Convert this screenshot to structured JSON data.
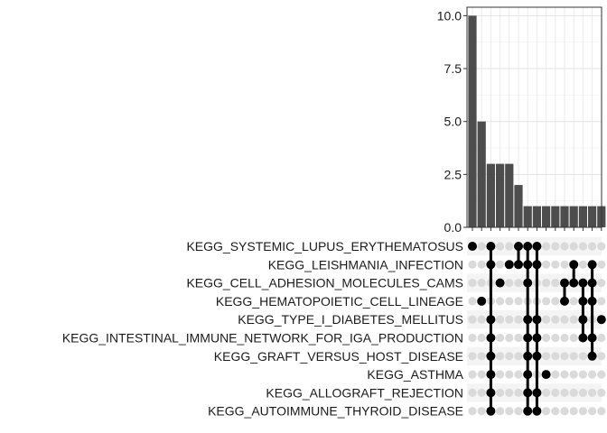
{
  "chart_data": {
    "type": "upset",
    "ylim": [
      0,
      10.4
    ],
    "y_ticks": [
      "0.0",
      "2.5",
      "5.0",
      "7.5",
      "10.0"
    ],
    "y_tick_values": [
      0,
      2.5,
      5,
      7.5,
      10
    ],
    "grid": true,
    "bar_color": "#4d4d4d",
    "dot_color": "#000000",
    "empty_dot_color": "#dadada",
    "sets": [
      "KEGG_SYSTEMIC_LUPUS_ERYTHEMATOSUS",
      "KEGG_LEISHMANIA_INFECTION",
      "KEGG_CELL_ADHESION_MOLECULES_CAMS",
      "KEGG_HEMATOPOIETIC_CELL_LINEAGE",
      "KEGG_TYPE_I_DIABETES_MELLITUS",
      "KEGG_INTESTINAL_IMMUNE_NETWORK_FOR_IGA_PRODUCTION",
      "KEGG_GRAFT_VERSUS_HOST_DISEASE",
      "KEGG_ASTHMA",
      "KEGG_ALLOGRAFT_REJECTION",
      "KEGG_AUTOIMMUNE_THYROID_DISEASE"
    ],
    "intersection_sizes": [
      10,
      5,
      3,
      3,
      3,
      2,
      1,
      1,
      1,
      1,
      1,
      1,
      1,
      1,
      1
    ],
    "intersections": [
      [
        0
      ],
      [
        3
      ],
      [
        0,
        1,
        4,
        5,
        6,
        7,
        8,
        9
      ],
      [
        2
      ],
      [
        1
      ],
      [
        0,
        1
      ],
      [
        0,
        1,
        2,
        4,
        5,
        6,
        7,
        8,
        9
      ],
      [
        0,
        1,
        4,
        5,
        6,
        8,
        9
      ],
      [
        7
      ],
      [],
      [
        2,
        3
      ],
      [
        1,
        2
      ],
      [
        2,
        3,
        4,
        5
      ],
      [
        1,
        2,
        3,
        5,
        6
      ],
      [
        4
      ]
    ]
  }
}
